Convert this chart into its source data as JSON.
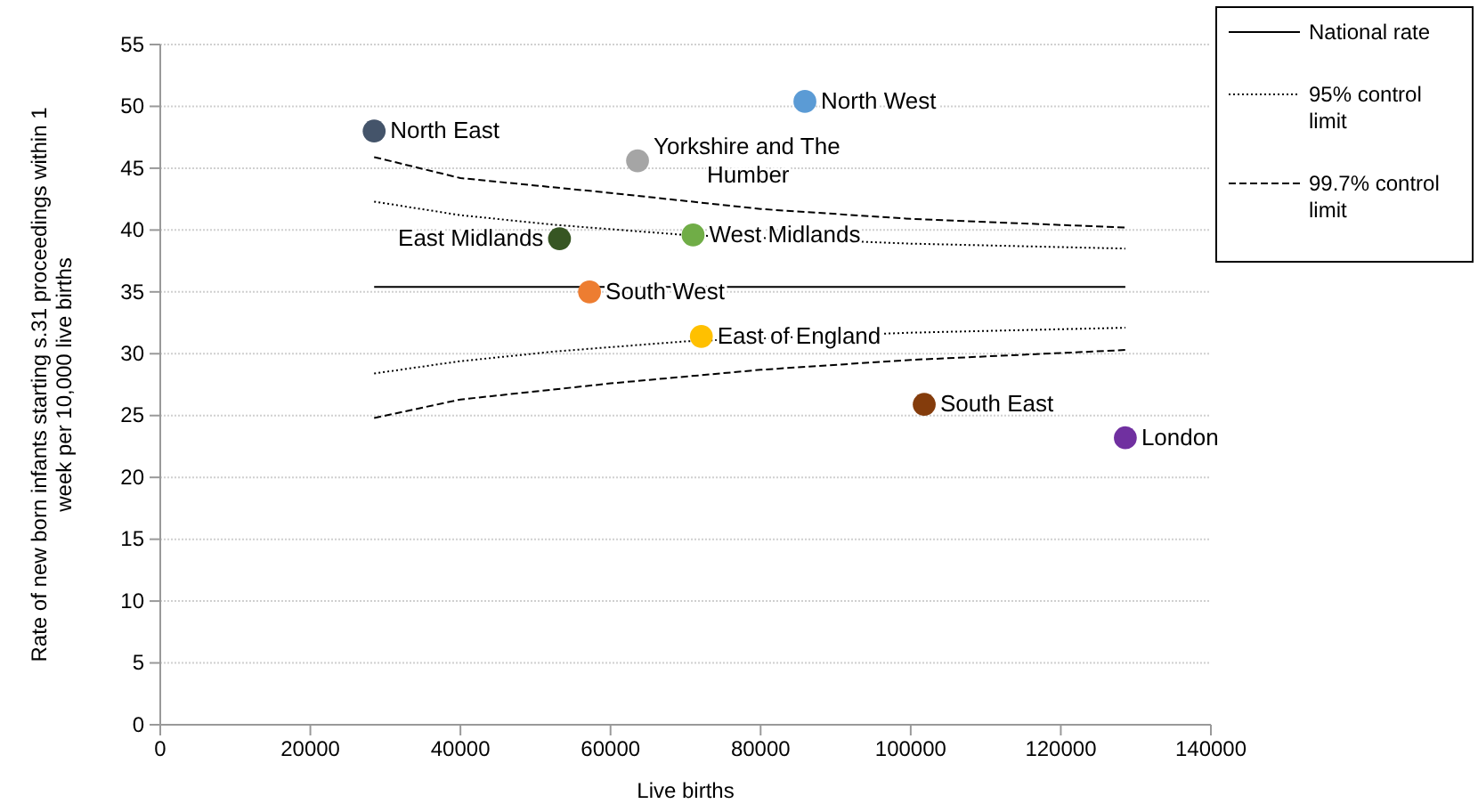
{
  "chart_data": {
    "type": "scatter",
    "xlabel": "Live births",
    "ylabel": "Rate of new born infants starting s.31 proceedings within 1 week per 10,000 live births",
    "xlim": [
      0,
      140000
    ],
    "xticks": [
      0,
      20000,
      40000,
      60000,
      80000,
      100000,
      120000,
      140000
    ],
    "ylim": [
      0,
      55
    ],
    "yticks": [
      0,
      5,
      10,
      15,
      20,
      25,
      30,
      35,
      40,
      45,
      50,
      55
    ],
    "grid": "y",
    "legend": "right",
    "marker": "circle",
    "series": [
      {
        "name": "North East",
        "color": "#44546a",
        "x": [
          28500
        ],
        "values": [
          48
        ]
      },
      {
        "name": "North West",
        "color": "#5b9bd5",
        "x": [
          85900
        ],
        "values": [
          50.4
        ]
      },
      {
        "name": "Yorkshire and The Humber",
        "color": "#a5a5a5",
        "x": [
          63600
        ],
        "values": [
          45.6
        ]
      },
      {
        "name": "East Midlands",
        "color": "#375623",
        "x": [
          53200
        ],
        "values": [
          39.3
        ]
      },
      {
        "name": "West Midlands",
        "color": "#70ad47",
        "x": [
          71000
        ],
        "values": [
          39.6
        ]
      },
      {
        "name": "South West",
        "color": "#ed7d31",
        "x": [
          57200
        ],
        "values": [
          35
        ]
      },
      {
        "name": "East of England",
        "color": "#ffc000",
        "x": [
          72100
        ],
        "values": [
          31.4
        ]
      },
      {
        "name": "South East",
        "color": "#843c0c",
        "x": [
          101800
        ],
        "values": [
          25.9
        ]
      },
      {
        "name": "London",
        "color": "#7030a0",
        "x": [
          128600
        ],
        "values": [
          23.2
        ]
      },
      {
        "name": "National rate",
        "type": "line",
        "color": "#000000",
        "line_style": "solid",
        "marker": "none",
        "x": [
          28500,
          128600
        ],
        "values": [
          35.4,
          35.4
        ]
      },
      {
        "name": "95% control limit",
        "type": "line",
        "color": "#000000",
        "line_style": "dotted",
        "marker": "none",
        "x": [
          28500,
          40000,
          53000,
          70000,
          100000,
          128600
        ],
        "values": [
          42.3,
          41.2,
          40.4,
          39.6,
          38.9,
          38.5
        ]
      },
      {
        "type": "line",
        "color": "#000000",
        "line_style": "dotted",
        "marker": "none",
        "x": [
          28500,
          40000,
          53000,
          70000,
          100000,
          128600
        ],
        "values": [
          28.4,
          29.4,
          30.2,
          31,
          31.7,
          32.1
        ]
      },
      {
        "name": "99.7% control limit",
        "type": "line",
        "color": "#000000",
        "line_style": "dashed",
        "marker": "none",
        "x": [
          28500,
          40000,
          60000,
          80000,
          100000,
          128600
        ],
        "values": [
          45.9,
          44.2,
          43,
          41.7,
          40.9,
          40.2
        ]
      },
      {
        "type": "line",
        "color": "#000000",
        "line_style": "dashed",
        "marker": "none",
        "x": [
          28500,
          40000,
          60000,
          80000,
          100000,
          128600
        ],
        "values": [
          24.8,
          26.3,
          27.6,
          28.7,
          29.5,
          30.3
        ]
      }
    ]
  }
}
